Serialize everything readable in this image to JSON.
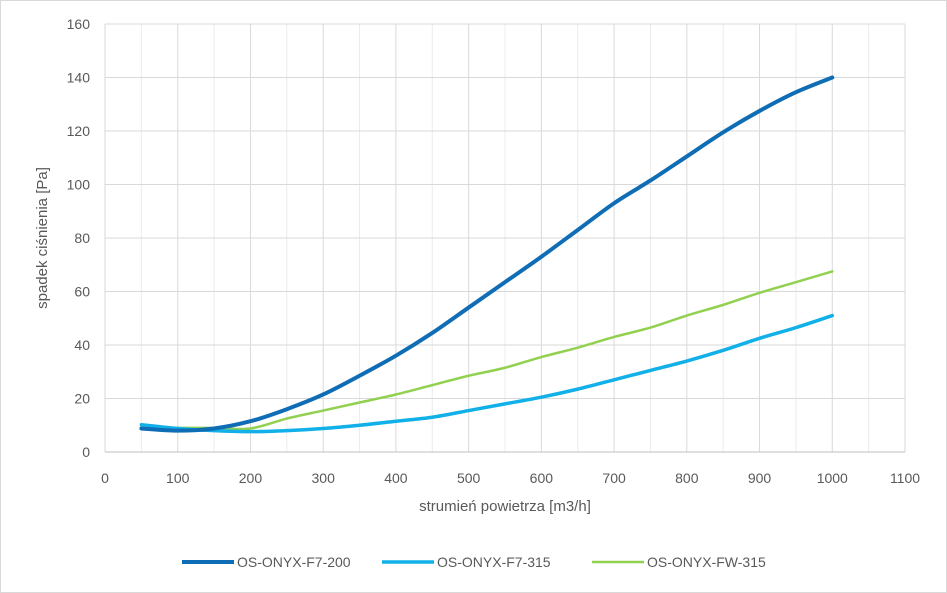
{
  "chart_data": {
    "type": "line",
    "xlabel": "strumień powietrza [m3/h]",
    "ylabel": "spadek ciśnienia [Pa]",
    "xlim": [
      0,
      1100
    ],
    "ylim": [
      0,
      160
    ],
    "xticks": [
      0,
      100,
      200,
      300,
      400,
      500,
      600,
      700,
      800,
      900,
      1000,
      1100
    ],
    "yticks": [
      0,
      20,
      40,
      60,
      80,
      100,
      120,
      140,
      160
    ],
    "grid": true,
    "legend_position": "bottom",
    "x": [
      50,
      100,
      150,
      200,
      250,
      300,
      350,
      400,
      450,
      500,
      550,
      600,
      650,
      700,
      750,
      800,
      850,
      900,
      950,
      1000
    ],
    "series": [
      {
        "name": "OS-ONYX-F7-200",
        "color": "#0f6db5",
        "values": [
          8.8,
          8.0,
          8.8,
          11.5,
          16,
          21.5,
          28.5,
          36,
          44.5,
          54,
          63.5,
          73,
          83,
          93,
          101.5,
          110.5,
          119.5,
          127.5,
          134.5,
          140
        ]
      },
      {
        "name": "OS-ONYX-F7-315",
        "color": "#11b0e8",
        "values": [
          10.2,
          8.8,
          8.0,
          7.6,
          8.0,
          8.8,
          10.0,
          11.5,
          13,
          15.5,
          18,
          20.5,
          23.5,
          27,
          30.5,
          34,
          38,
          42.5,
          46.5,
          51
        ]
      },
      {
        "name": "OS-ONYX-FW-315",
        "color": "#92d050",
        "values": [
          9.0,
          9.0,
          9.0,
          8.8,
          12.5,
          15.5,
          18.5,
          21.5,
          25,
          28.5,
          31.5,
          35.5,
          39,
          43,
          46.5,
          51,
          55,
          59.5,
          63.5,
          67.5
        ]
      }
    ]
  }
}
